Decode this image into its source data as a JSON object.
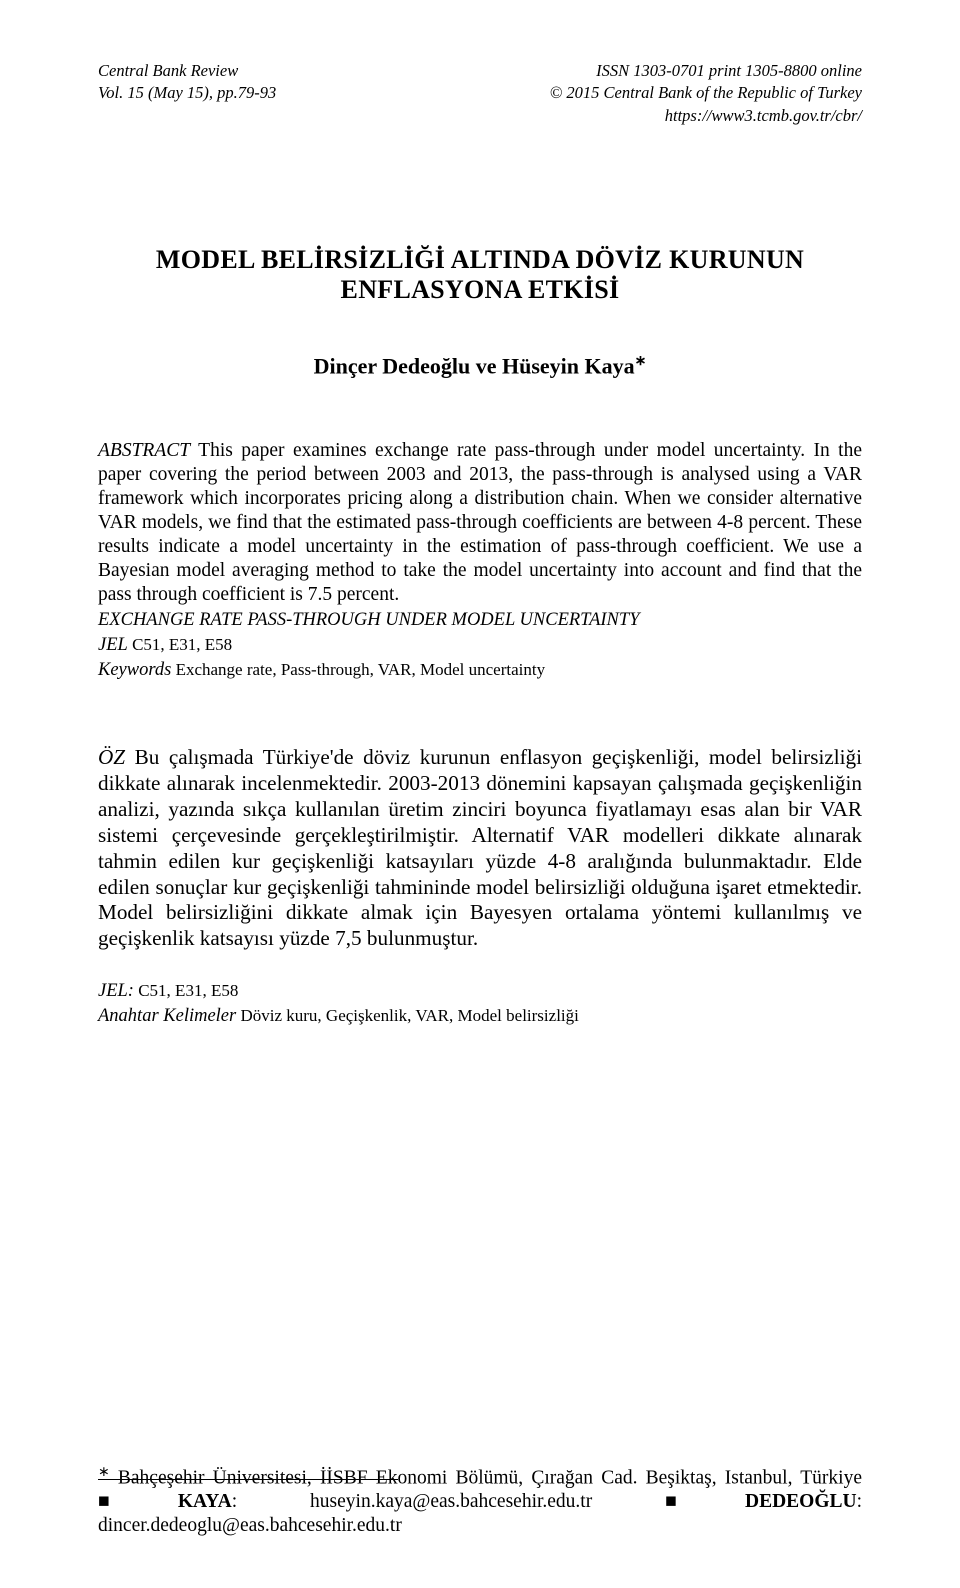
{
  "header": {
    "journal": "Central Bank Review",
    "vol": "Vol. 15 (May 15), pp.79-93",
    "issn": "ISSN 1303-0701 print 1305-8800 online",
    "copyright": "© 2015 Central Bank of the Republic of Turkey",
    "url": "https://www3.tcmb.gov.tr/cbr/"
  },
  "title": {
    "line1": "MODEL BELİRSİZLİĞİ ALTINDA DÖVİZ KURUNUN ENFLASYONA ETKİSİ"
  },
  "authors": "Dinçer Dedeoğlu ve Hüseyin Kaya",
  "abstract": {
    "lead": "ABSTRACT",
    "text": " This paper examines exchange rate pass-through under model uncertainty. In the paper covering the period between 2003 and 2013, the pass-through is analysed using a VAR framework which incorporates pricing along a distribution chain. When we consider alternative VAR models, we find that the estimated pass-through coefficients are between 4-8 percent. These results indicate a model uncertainty in the estimation of pass-through coefficient. We use a Bayesian model averaging method to take the model uncertainty into account and find that the pass through coefficient is 7.5 percent.",
    "subheadline": "EXCHANGE RATE PASS-THROUGH UNDER MODEL UNCERTAINTY",
    "jel_label": "JEL",
    "jel_codes": " C51, E31, E58",
    "keywords_label": "Keywords",
    "keywords": " Exchange rate, Pass-through, VAR, Model uncertainty"
  },
  "oz": {
    "lead": "ÖZ",
    "text": " Bu çalışmada Türkiye'de döviz kurunun enflasyon geçişkenliği, model belirsizliği dikkate alınarak incelenmektedir. 2003-2013 dönemini kapsayan çalışmada geçişkenliğin analizi, yazında sıkça kullanılan üretim zinciri boyunca fiyatlamayı esas alan bir VAR sistemi çerçevesinde gerçekleştirilmiştir. Alternatif VAR modelleri dikkate alınarak tahmin edilen kur geçişkenliği katsayıları yüzde 4-8 aralığında bulunmaktadır. Elde edilen sonuçlar kur geçişkenliği tahmininde model belirsizliği olduğuna işaret etmektedir. Model belirsizliğini dikkate almak için Bayesyen ortalama yöntemi kullanılmış ve geçişkenlik katsayısı yüzde 7,5 bulunmuştur.",
    "jel_label": "JEL:",
    "jel_codes": " C51, E31, E58",
    "ak_label": "Anahtar Kelimeler",
    "ak_vals": " Döviz kuru, Geçişkenlik, VAR, Model belirsizliği"
  },
  "footnote": {
    "affiliation": " Bahçeşehir Üniversitesi, İİSBF Ekonomi Bölümü, Çırağan Cad. Beşiktaş, Istanbul, Türkiye ",
    "kaya_label": "KAYA",
    "kaya_email": ": huseyin.kaya@eas.bahcesehir.edu.tr ",
    "dede_label": "DEDEOĞLU",
    "dede_email": ": dincer.dedeoglu@eas.bahcesehir.edu.tr"
  }
}
